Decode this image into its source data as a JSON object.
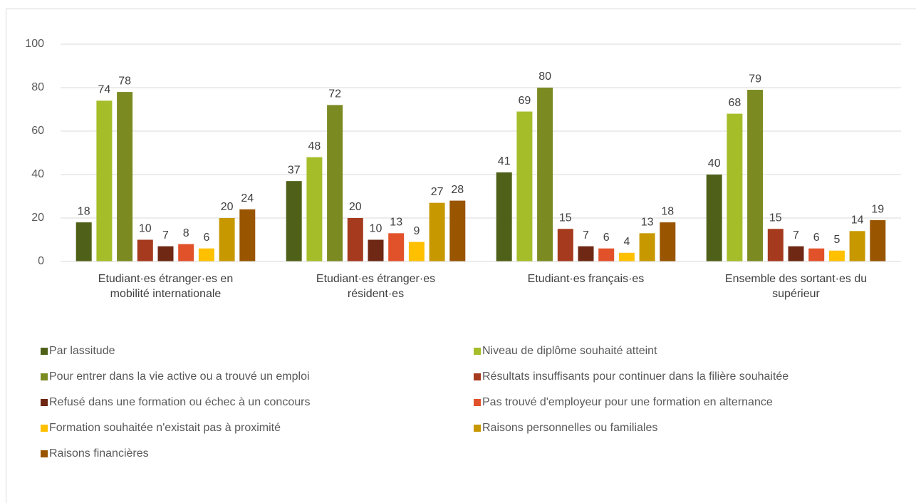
{
  "chart_data": {
    "type": "bar",
    "categories": [
      "Etudiant·es  étranger·es en mobilité internationale",
      "Etudiant·es  étranger·es résident·es",
      "Etudiant·es français·es",
      "Ensemble des sortant·es du supérieur"
    ],
    "series": [
      {
        "name": "Par lassitude",
        "color": "#4f6118",
        "values": [
          18,
          37,
          41,
          40
        ]
      },
      {
        "name": "Niveau de diplôme souhaité atteint",
        "color": "#a6bd2a",
        "values": [
          74,
          48,
          69,
          68
        ]
      },
      {
        "name": "Pour entrer dans la vie active ou a trouvé un emploi",
        "color": "#7b8b22",
        "values": [
          78,
          72,
          80,
          79
        ]
      },
      {
        "name": "Résultats insuffisants pour continuer dans la filière souhaitée",
        "color": "#a53a1e",
        "values": [
          10,
          20,
          15,
          15
        ]
      },
      {
        "name": "Refusé dans une formation ou échec à un concours",
        "color": "#6e2814",
        "values": [
          7,
          10,
          7,
          7
        ]
      },
      {
        "name": "Pas trouvé d'employeur pour une formation en alternance",
        "color": "#e2522a",
        "values": [
          8,
          13,
          6,
          6
        ]
      },
      {
        "name": "Formation souhaitée n'existait pas à proximité",
        "color": "#ffc000",
        "values": [
          6,
          9,
          4,
          5
        ]
      },
      {
        "name": "Raisons personnelles ou familiales",
        "color": "#c89800",
        "values": [
          20,
          27,
          13,
          14
        ]
      },
      {
        "name": "Raisons financières",
        "color": "#995500",
        "values": [
          24,
          28,
          18,
          19
        ]
      }
    ],
    "ylim": [
      0,
      100
    ],
    "yticks": [
      0,
      20,
      40,
      60,
      80,
      100
    ],
    "grid": true,
    "legend": "bottom"
  }
}
